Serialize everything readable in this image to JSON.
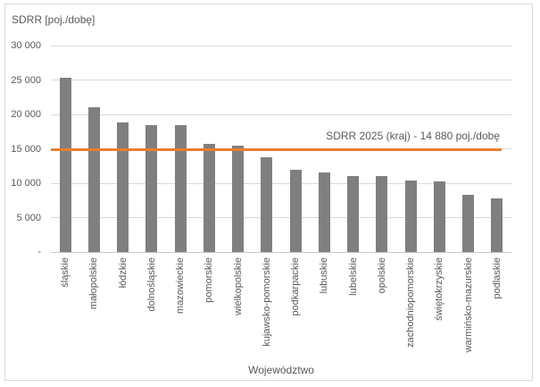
{
  "chart_data": {
    "type": "bar",
    "y_axis_title": "SDRR [poj./dobę]",
    "xlabel": "Województwo",
    "categories": [
      "śląskie",
      "małopolskie",
      "łódzkie",
      "dolnośląskie",
      "mazowieckie",
      "pomorskie",
      "wielkopolskie",
      "kujawsko-pomorskie",
      "podkarpackie",
      "lubuskie",
      "lubelskie",
      "opolskie",
      "zachodniopomorskie",
      "świętokrzyskie",
      "warmińsko-mazurskie",
      "podlaskie"
    ],
    "values": [
      25300,
      21000,
      18800,
      18500,
      18400,
      15700,
      15400,
      13800,
      12000,
      11600,
      11100,
      11000,
      10400,
      10300,
      8300,
      7800
    ],
    "ylim": [
      0,
      30000
    ],
    "ytick_values": [
      0,
      5000,
      10000,
      15000,
      20000,
      25000,
      30000
    ],
    "ytick_labels": [
      "-",
      "5 000",
      "10 000",
      "15 000",
      "20 000",
      "25 000",
      "30 000"
    ],
    "grid": true,
    "legend": "none",
    "bar_color": "#7f7f7f",
    "reference_line": {
      "value": 14880,
      "label": "SDRR 2025 (kraj) - 14 880 poj./dobę",
      "color": "#ED7D31",
      "end_fraction": 0.979
    }
  },
  "colors": {
    "background": "#ffffff",
    "border": "#D9D9D9",
    "gridline": "#D9D9D9",
    "text": "#595959",
    "bar": "#7f7f7f",
    "reference": "#ED7D31"
  }
}
